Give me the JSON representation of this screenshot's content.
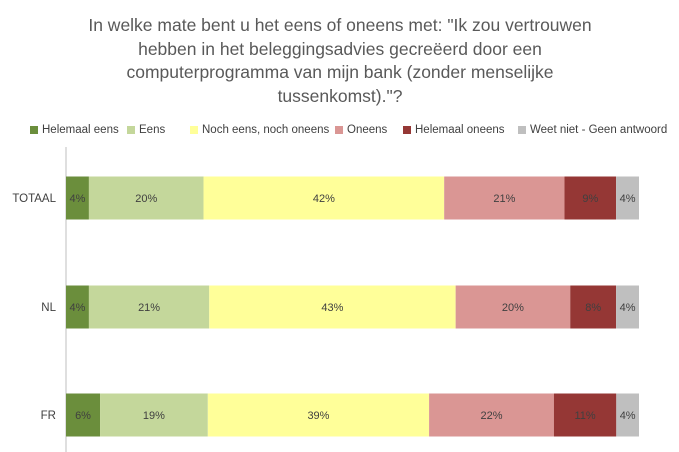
{
  "title_lines": [
    "In welke mate bent u het eens of oneens met: \"Ik zou vertrouwen",
    "hebben in het beleggingsadvies gecreëerd door een",
    "computerprogramma van mijn bank (zonder menselijke",
    "tussenkomst).\"?"
  ],
  "chart_data": {
    "type": "bar",
    "orientation": "horizontal",
    "stacked": "percent",
    "title": "In welke mate bent u het eens of oneens met: \"Ik zou vertrouwen hebben in het beleggingsadvies gecreëerd door een computerprogramma van mijn bank (zonder menselijke tussenkomst).\"?",
    "categories": [
      "TOTAAL",
      "NL",
      "FR"
    ],
    "series": [
      {
        "name": "Helemaal eens",
        "color": "#6b8e3c",
        "values": [
          4,
          4,
          6
        ]
      },
      {
        "name": "Eens",
        "color": "#c4d79b",
        "values": [
          20,
          21,
          19
        ]
      },
      {
        "name": "Noch eens, noch oneens",
        "color": "#ffff99",
        "values": [
          42,
          43,
          39
        ]
      },
      {
        "name": "Oneens",
        "color": "#da9694",
        "values": [
          21,
          20,
          22
        ]
      },
      {
        "name": "Helemaal oneens",
        "color": "#953735",
        "values": [
          9,
          8,
          11
        ]
      },
      {
        "name": "Weet niet - Geen antwoord",
        "color": "#bfbfbf",
        "values": [
          4,
          4,
          4
        ]
      }
    ],
    "value_suffix": "%",
    "legend_position": "top",
    "grid": false
  }
}
